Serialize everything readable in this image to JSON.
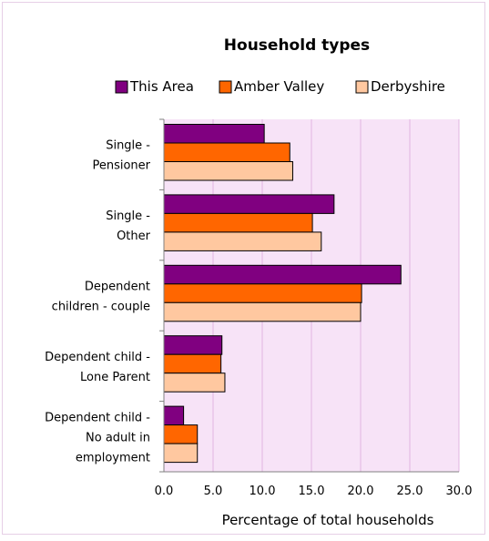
{
  "chart_data": {
    "type": "bar",
    "orientation": "horizontal",
    "title": "Household types",
    "xlabel": "Percentage of total households",
    "ylabel": "",
    "xlim": [
      0,
      30
    ],
    "xticks": [
      "0.0",
      "5.0",
      "10.0",
      "15.0",
      "20.0",
      "25.0",
      "30.0"
    ],
    "grid": "vertical",
    "legend_position": "top",
    "categories": [
      [
        "Single -",
        "Pensioner"
      ],
      [
        "Single -",
        "Other"
      ],
      [
        "Dependent",
        "children - couple"
      ],
      [
        "Dependent child -",
        "Lone Parent"
      ],
      [
        "Dependent child -",
        "No adult in",
        "employment"
      ]
    ],
    "series": [
      {
        "name": "This Area",
        "color": "#800080",
        "values": [
          10.2,
          17.3,
          24.1,
          5.9,
          2.0
        ]
      },
      {
        "name": "Amber Valley",
        "color": "#ff6600",
        "values": [
          12.8,
          15.1,
          20.1,
          5.8,
          3.4
        ]
      },
      {
        "name": "Derbyshire",
        "color": "#ffc8a0",
        "values": [
          13.1,
          16.0,
          20.0,
          6.2,
          3.4
        ]
      }
    ],
    "plot_background": "#f7e3f7",
    "gridline_color": "#e0b5e0"
  }
}
